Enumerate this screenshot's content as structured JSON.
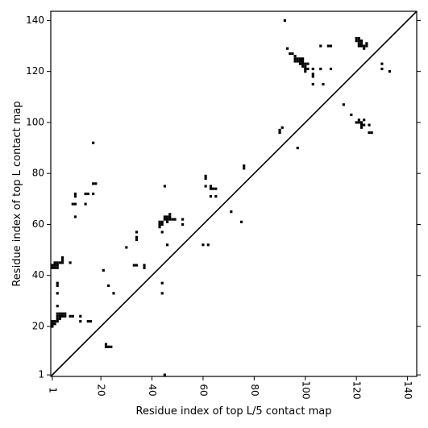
{
  "chart_data": {
    "type": "scatter",
    "title": "",
    "xlabel": "Residue index of top L/5 contact map",
    "ylabel": "Residue index of top L contact map",
    "xlim": [
      1,
      143
    ],
    "ylim": [
      1,
      143
    ],
    "x_ticks": [
      1,
      20,
      40,
      60,
      80,
      100,
      120,
      140
    ],
    "y_ticks": [
      1,
      20,
      40,
      60,
      80,
      100,
      120,
      140
    ],
    "grid": false,
    "legend": "none",
    "marker_color": "#000000",
    "diagonal_line": true,
    "points": [
      [
        1,
        43
      ],
      [
        1,
        44
      ],
      [
        2,
        43
      ],
      [
        2,
        44
      ],
      [
        2,
        45
      ],
      [
        3,
        43
      ],
      [
        3,
        44
      ],
      [
        3,
        45
      ],
      [
        4,
        45
      ],
      [
        5,
        45
      ],
      [
        5,
        46
      ],
      [
        5,
        47
      ],
      [
        1,
        20
      ],
      [
        1,
        21
      ],
      [
        1,
        22
      ],
      [
        2,
        21
      ],
      [
        2,
        22
      ],
      [
        3,
        22
      ],
      [
        3,
        23
      ],
      [
        3,
        24
      ],
      [
        3,
        25
      ],
      [
        4,
        23
      ],
      [
        4,
        24
      ],
      [
        4,
        25
      ],
      [
        5,
        24
      ],
      [
        5,
        25
      ],
      [
        6,
        24
      ],
      [
        6,
        25
      ],
      [
        3,
        28
      ],
      [
        3,
        33
      ],
      [
        3,
        36
      ],
      [
        3,
        37
      ],
      [
        8,
        24
      ],
      [
        9,
        24
      ],
      [
        8,
        45
      ],
      [
        9,
        68
      ],
      [
        10,
        68
      ],
      [
        10,
        63
      ],
      [
        10,
        71
      ],
      [
        10,
        72
      ],
      [
        12,
        22
      ],
      [
        12,
        24
      ],
      [
        14,
        68
      ],
      [
        14,
        72
      ],
      [
        15,
        72
      ],
      [
        15,
        22
      ],
      [
        16,
        22
      ],
      [
        17,
        72
      ],
      [
        17,
        76
      ],
      [
        17,
        92
      ],
      [
        18,
        76
      ],
      [
        21,
        42
      ],
      [
        22,
        12
      ],
      [
        22,
        13
      ],
      [
        23,
        36
      ],
      [
        23,
        12
      ],
      [
        24,
        12
      ],
      [
        25,
        33
      ],
      [
        30,
        51
      ],
      [
        33,
        44
      ],
      [
        34,
        44
      ],
      [
        34,
        54
      ],
      [
        34,
        55
      ],
      [
        34,
        57
      ],
      [
        37,
        43
      ],
      [
        37,
        44
      ],
      [
        43,
        59
      ],
      [
        43,
        60
      ],
      [
        43,
        61
      ],
      [
        44,
        60
      ],
      [
        44,
        61
      ],
      [
        44,
        57
      ],
      [
        44,
        33
      ],
      [
        44,
        37
      ],
      [
        45,
        1
      ],
      [
        45,
        62
      ],
      [
        45,
        63
      ],
      [
        45,
        75
      ],
      [
        46,
        52
      ],
      [
        46,
        61
      ],
      [
        46,
        62
      ],
      [
        46,
        63
      ],
      [
        47,
        62
      ],
      [
        47,
        63
      ],
      [
        47,
        64
      ],
      [
        48,
        62
      ],
      [
        49,
        62
      ],
      [
        52,
        60
      ],
      [
        52,
        62
      ],
      [
        60,
        52
      ],
      [
        61,
        75
      ],
      [
        61,
        78
      ],
      [
        61,
        79
      ],
      [
        62,
        52
      ],
      [
        63,
        71
      ],
      [
        63,
        74
      ],
      [
        63,
        75
      ],
      [
        64,
        74
      ],
      [
        65,
        74
      ],
      [
        65,
        71
      ],
      [
        71,
        65
      ],
      [
        75,
        61
      ],
      [
        76,
        82
      ],
      [
        76,
        83
      ],
      [
        90,
        96
      ],
      [
        90,
        97
      ],
      [
        91,
        98
      ],
      [
        92,
        140
      ],
      [
        93,
        129
      ],
      [
        94,
        127
      ],
      [
        95,
        127
      ],
      [
        96,
        124
      ],
      [
        96,
        125
      ],
      [
        96,
        126
      ],
      [
        97,
        124
      ],
      [
        97,
        125
      ],
      [
        97,
        90
      ],
      [
        98,
        123
      ],
      [
        98,
        124
      ],
      [
        98,
        125
      ],
      [
        99,
        122
      ],
      [
        99,
        123
      ],
      [
        99,
        124
      ],
      [
        99,
        125
      ],
      [
        100,
        120
      ],
      [
        100,
        121
      ],
      [
        100,
        122
      ],
      [
        100,
        123
      ],
      [
        101,
        121
      ],
      [
        101,
        123
      ],
      [
        103,
        115
      ],
      [
        103,
        118
      ],
      [
        103,
        119
      ],
      [
        103,
        121
      ],
      [
        106,
        121
      ],
      [
        106,
        130
      ],
      [
        107,
        115
      ],
      [
        109,
        130
      ],
      [
        110,
        121
      ],
      [
        110,
        130
      ],
      [
        115,
        107
      ],
      [
        118,
        103
      ],
      [
        120,
        100
      ],
      [
        120,
        132
      ],
      [
        120,
        133
      ],
      [
        121,
        100
      ],
      [
        121,
        101
      ],
      [
        121,
        130
      ],
      [
        121,
        131
      ],
      [
        121,
        132
      ],
      [
        121,
        133
      ],
      [
        122,
        98
      ],
      [
        122,
        99
      ],
      [
        122,
        100
      ],
      [
        122,
        130
      ],
      [
        122,
        131
      ],
      [
        122,
        132
      ],
      [
        123,
        101
      ],
      [
        123,
        99
      ],
      [
        123,
        129
      ],
      [
        123,
        130
      ],
      [
        124,
        130
      ],
      [
        124,
        131
      ],
      [
        125,
        96
      ],
      [
        125,
        99
      ],
      [
        126,
        96
      ],
      [
        130,
        121
      ],
      [
        130,
        123
      ],
      [
        133,
        120
      ]
    ]
  }
}
